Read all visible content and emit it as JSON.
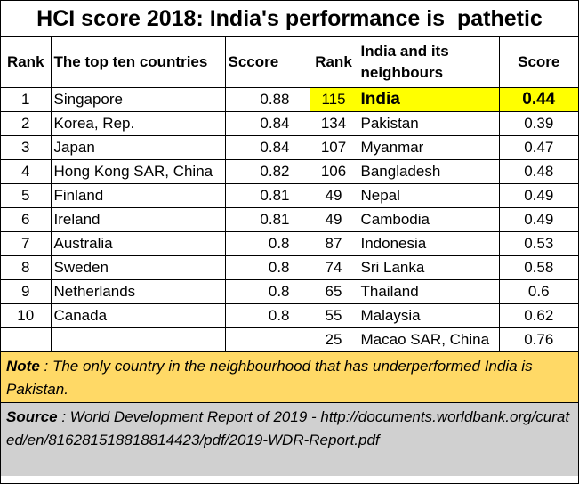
{
  "title": "HCI score 2018: India's performance is  pathetic",
  "headers": {
    "rank_left": "Rank",
    "countries": "The top ten countries",
    "score_left": "Sccore",
    "rank_right": "Rank",
    "neighbours": "India and its neighbours",
    "score_right": "Score"
  },
  "top_ten": [
    {
      "rank": "1",
      "country": "Singapore",
      "score": "0.88"
    },
    {
      "rank": "2",
      "country": "Korea, Rep.",
      "score": "0.84"
    },
    {
      "rank": "3",
      "country": "Japan",
      "score": "0.84"
    },
    {
      "rank": "4",
      "country": "Hong Kong SAR, China",
      "score": "0.82"
    },
    {
      "rank": "5",
      "country": "Finland",
      "score": "0.81"
    },
    {
      "rank": "6",
      "country": "Ireland",
      "score": "0.81"
    },
    {
      "rank": "7",
      "country": "Australia",
      "score": "0.8"
    },
    {
      "rank": "8",
      "country": "Sweden",
      "score": "0.8"
    },
    {
      "rank": "9",
      "country": "Netherlands",
      "score": "0.8"
    },
    {
      "rank": "10",
      "country": "Canada",
      "score": "0.8"
    },
    {
      "rank": "",
      "country": "",
      "score": ""
    }
  ],
  "neighbours": [
    {
      "rank": "115",
      "country": "India",
      "score": "0.44"
    },
    {
      "rank": "134",
      "country": "Pakistan",
      "score": "0.39"
    },
    {
      "rank": "107",
      "country": "Myanmar",
      "score": "0.47"
    },
    {
      "rank": "106",
      "country": "Bangladesh",
      "score": "0.48"
    },
    {
      "rank": "49",
      "country": "Nepal",
      "score": "0.49"
    },
    {
      "rank": "49",
      "country": "Cambodia",
      "score": "0.49"
    },
    {
      "rank": "87",
      "country": "Indonesia",
      "score": "0.53"
    },
    {
      "rank": "74",
      "country": "Sri Lanka",
      "score": "0.58"
    },
    {
      "rank": "65",
      "country": "Thailand",
      "score": "0.6"
    },
    {
      "rank": "55",
      "country": "Malaysia",
      "score": "0.62"
    },
    {
      "rank": "25",
      "country": "Macao SAR, China",
      "score": "0.76"
    }
  ],
  "note": {
    "label": "Note",
    "text": " : The only country in the neighbourhood that has underperformed India is Pakistan."
  },
  "source": {
    "label": "Source",
    "text": " : World Development Report of 2019 - http://documents.worldbank.org/curated/en/816281518818814423/pdf/2019-WDR-Report.pdf"
  },
  "colors": {
    "highlight": "#ffff00",
    "note_bg": "#ffd966",
    "source_bg": "#d0d0d0"
  }
}
